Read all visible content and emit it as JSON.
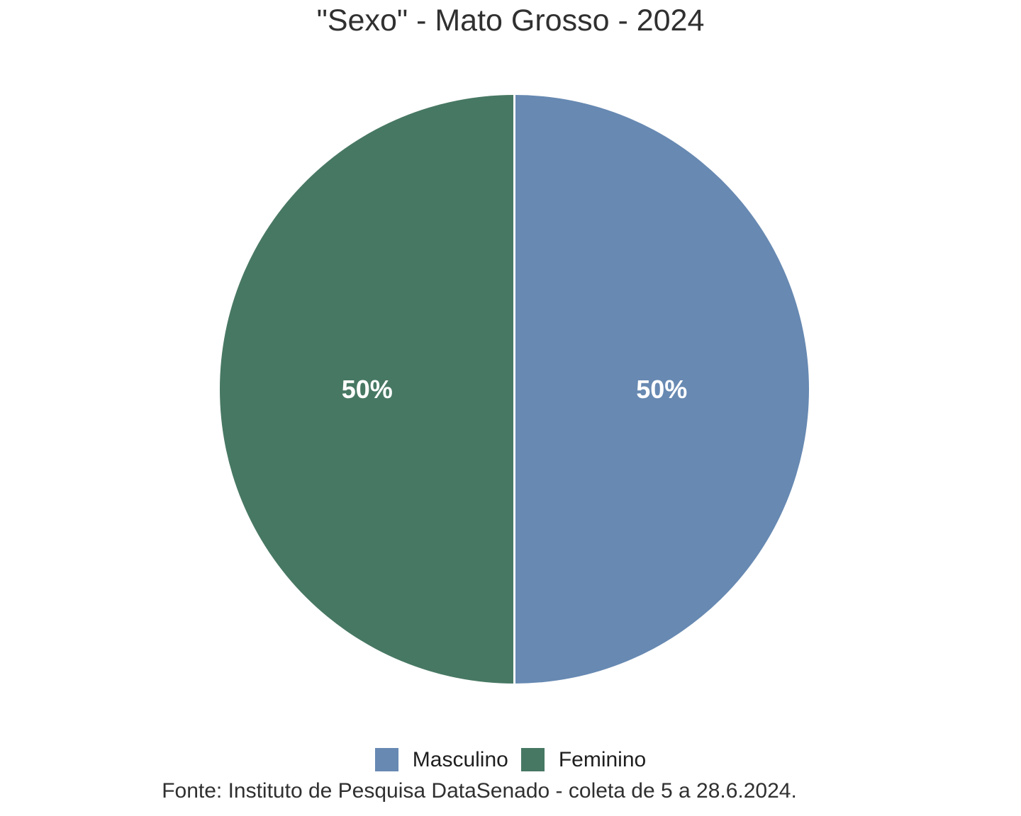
{
  "title": "\"Sexo\" - Mato Grosso - 2024",
  "caption": "Fonte: Instituto de Pesquisa DataSenado - coleta de 5 a 28.6.2024.",
  "colors": {
    "background": "#ffffff",
    "text": "#303030",
    "slice_label_text": "#ffffff",
    "slice_border": "#ffffff",
    "masculino": "#6789b2",
    "feminino": "#477863"
  },
  "chart_data": {
    "type": "pie",
    "title": "\"Sexo\" - Mato Grosso - 2024",
    "caption": "Fonte: Instituto de Pesquisa DataSenado - coleta de 5 a 28.6.2024.",
    "start_angle_deg": 0,
    "direction": "clockwise",
    "legend_position": "bottom",
    "slice_border_color": "#ffffff",
    "series": [
      {
        "name": "Masculino",
        "value": 50,
        "label": "50%",
        "color": "#6789b2"
      },
      {
        "name": "Feminino",
        "value": 50,
        "label": "50%",
        "color": "#477863"
      }
    ]
  }
}
